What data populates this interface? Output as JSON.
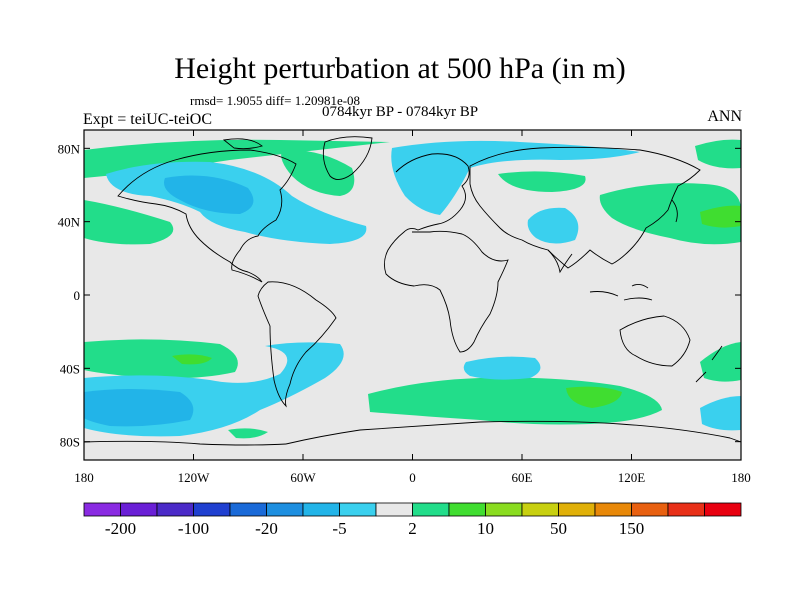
{
  "title": "Height perturbation at 500 hPa (in m)",
  "stats": "rmsd= 1.9055 diff= 1.20981e-08",
  "left_label": "Expt = teiUC-teiOC",
  "center_label": "0784kyr BP - 0784kyr BP",
  "right_label": "ANN",
  "lat_ticks": [
    {
      "lat": 80,
      "label": "80N"
    },
    {
      "lat": 40,
      "label": "40N"
    },
    {
      "lat": 0,
      "label": "0"
    },
    {
      "lat": -40,
      "label": "40S"
    },
    {
      "lat": -80,
      "label": "80S"
    }
  ],
  "lon_ticks": [
    {
      "lon": -180,
      "label": "180"
    },
    {
      "lon": -120,
      "label": "120W"
    },
    {
      "lon": -60,
      "label": "60W"
    },
    {
      "lon": 0,
      "label": "0"
    },
    {
      "lon": 60,
      "label": "60E"
    },
    {
      "lon": 120,
      "label": "120E"
    },
    {
      "lon": 180,
      "label": "180"
    }
  ],
  "colorbar": {
    "colors": [
      "#8a2be2",
      "#6a1fd6",
      "#4b2ac8",
      "#2040d0",
      "#1a6ad8",
      "#1e8fe0",
      "#22b4e8",
      "#3ad0ee",
      "#e8e8e8",
      "#22dd8a",
      "#40dd30",
      "#8adc20",
      "#c8d010",
      "#e0b008",
      "#e88808",
      "#e86010",
      "#e83018",
      "#e80010"
    ],
    "labels": [
      {
        "index": 1,
        "label": "-200"
      },
      {
        "index": 3,
        "label": "-100"
      },
      {
        "index": 5,
        "label": "-20"
      },
      {
        "index": 7,
        "label": "-5"
      },
      {
        "index": 9,
        "label": "2"
      },
      {
        "index": 11,
        "label": "10"
      },
      {
        "index": 13,
        "label": "50"
      },
      {
        "index": 15,
        "label": "150"
      }
    ]
  },
  "map_colors": {
    "background": "#e8e8e8",
    "positive": "#22dd8a",
    "positive_strong": "#40dd30",
    "negative": "#3ad0ee",
    "negative_strong": "#22b4e8",
    "coast": "#000000"
  }
}
